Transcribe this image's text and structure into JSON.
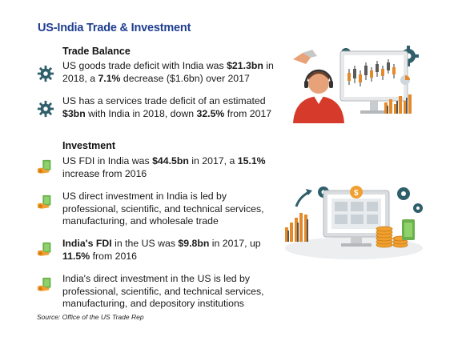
{
  "title": "US-India Trade & Investment",
  "trade_balance": {
    "heading": "Trade Balance",
    "items": [
      {
        "icon": "gear-icon",
        "parts": [
          "US goods trade deficit with India was ",
          "$21.3bn",
          " in 2018, a ",
          "7.1%",
          " decrease ($1.6bn) over 2017"
        ]
      },
      {
        "icon": "gear-icon",
        "parts": [
          "US has a services trade deficit of an estimated ",
          "$3bn",
          " with India in 2018, down ",
          "32.5%",
          " from 2017"
        ]
      }
    ]
  },
  "investment": {
    "heading": "Investment",
    "items": [
      {
        "icon": "money-hand-icon",
        "parts": [
          "US FDI in India was ",
          "$44.5bn",
          " in 2017, a ",
          "15.1%",
          " increase from 2016"
        ]
      },
      {
        "icon": "money-hand-icon",
        "parts": [
          "US direct investment in India is led by professional, scientific, and technical services, manufacturing, and wholesale trade"
        ]
      },
      {
        "icon": "money-hand-icon",
        "parts": [
          "",
          "India's FDI",
          " in the US was ",
          "$9.8bn",
          " in 2017, up ",
          "11.5%",
          " from 2016"
        ]
      },
      {
        "icon": "money-hand-icon",
        "parts": [
          "India's direct investment in the US is led by professional, scientific, and technical services, manufacturing, and depository institutions"
        ]
      }
    ]
  },
  "source": "Source: Office of the US Trade Rep",
  "colors": {
    "title": "#1f3e8f",
    "gear": "#2f5f6b",
    "accent": "#f0901e",
    "bars": "#e58a2a"
  }
}
